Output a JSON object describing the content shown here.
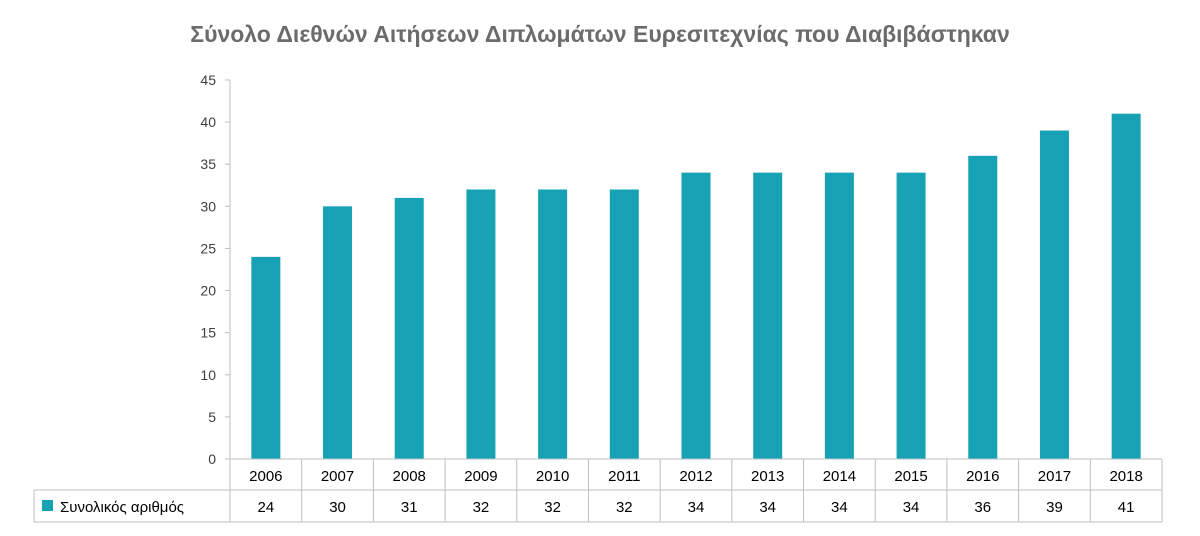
{
  "chart_data": {
    "type": "bar",
    "title": "Σύνολο  Διεθνών Αιτήσεων Διπλωμάτων Ευρεσιτεχνίας που Διαβιβάστηκαν",
    "categories": [
      "2006",
      "2007",
      "2008",
      "2009",
      "2010",
      "2011",
      "2012",
      "2013",
      "2014",
      "2015",
      "2016",
      "2017",
      "2018"
    ],
    "series": [
      {
        "name": "Συνολικός αριθμός",
        "values": [
          24,
          30,
          31,
          32,
          32,
          32,
          34,
          34,
          34,
          34,
          36,
          39,
          41
        ],
        "color": "#17a1b4"
      }
    ],
    "ylim": [
      0,
      45
    ],
    "yticks": [
      0,
      5,
      10,
      15,
      20,
      25,
      30,
      35,
      40,
      45
    ],
    "grid": false,
    "data_table": true,
    "legend": "data-table-row-header"
  }
}
